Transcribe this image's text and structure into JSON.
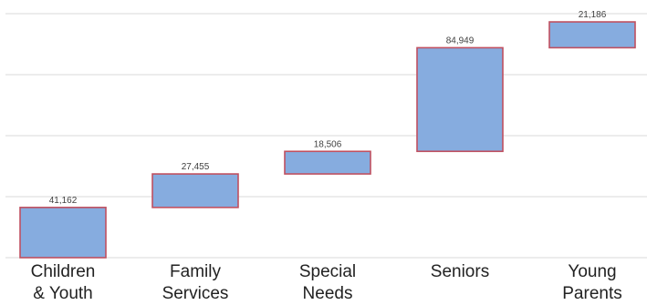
{
  "chart_data": {
    "type": "bar",
    "subtype": "waterfall",
    "categories": [
      [
        "Children",
        "& Youth"
      ],
      [
        "Family",
        "Services"
      ],
      [
        "Special",
        "Needs"
      ],
      [
        "Seniors"
      ],
      [
        "Young",
        "Parents"
      ]
    ],
    "values": [
      41162,
      27455,
      18506,
      84949,
      21186
    ],
    "data_labels": [
      "41,162",
      "27,455",
      "18,506",
      "84,949",
      "21,186"
    ],
    "ylim": [
      0,
      200000
    ],
    "grid": true,
    "colors": {
      "bar_fill": "#86acdf",
      "bar_border": "#c05060",
      "grid": "#d9d9d9"
    }
  }
}
